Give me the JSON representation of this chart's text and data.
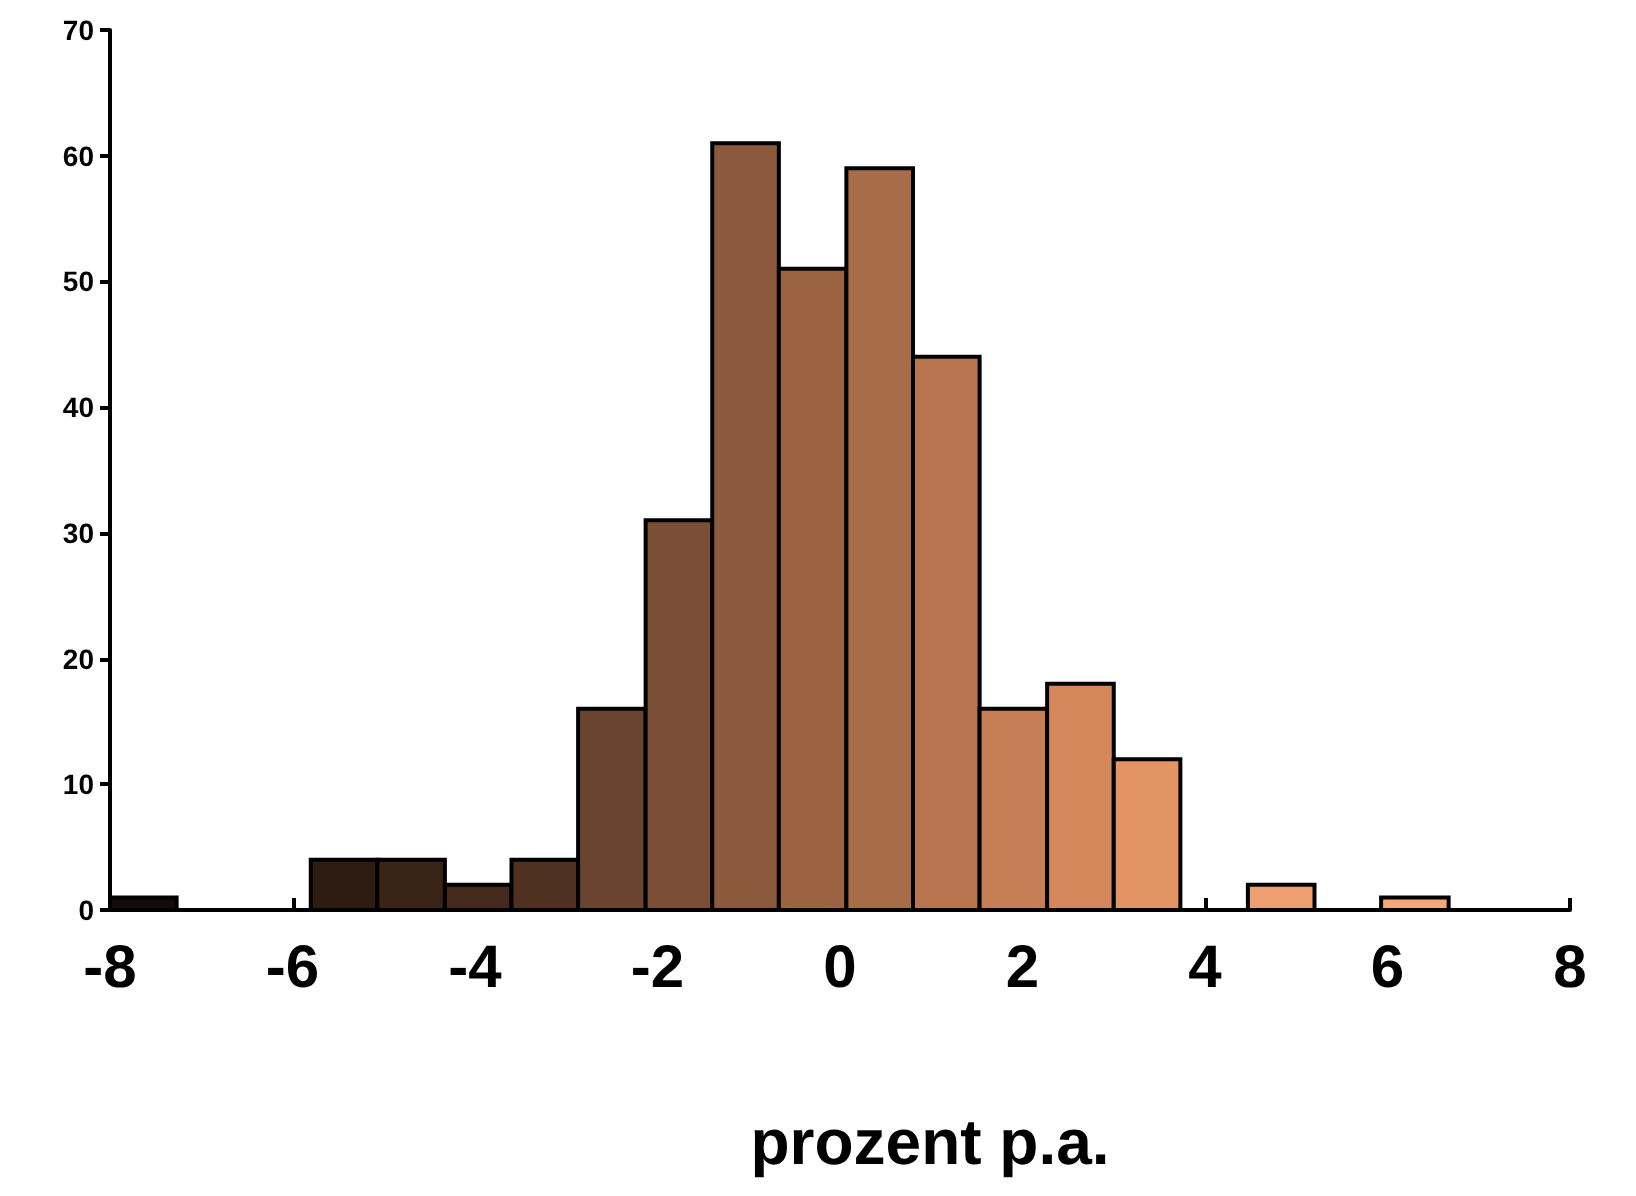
{
  "chart_data": {
    "type": "histogram",
    "xlabel": "prozent p.a.",
    "bins": [
      -8,
      -7.27,
      -5.8,
      -5.07,
      -4.33,
      -3.6,
      -2.87,
      -2.13,
      -1.4,
      -0.67,
      0.07,
      0.8,
      1.53,
      2.27,
      3,
      3.73,
      4.47,
      5.2,
      5.93,
      6.67
    ],
    "values": [
      1,
      0,
      4,
      4,
      2,
      4,
      16,
      31,
      61,
      51,
      59,
      44,
      16,
      18,
      12,
      0,
      2,
      0,
      1
    ],
    "colors": [
      "#140c08",
      null,
      "#2e1c13",
      "#3a2418",
      "#45291c",
      "#4f3021",
      "#6b4430",
      "#7a4f35",
      "#8b5a3c",
      "#9b6342",
      "#a86c48",
      "#b8744e",
      "#c67e55",
      "#d4875b",
      "#e39463",
      null,
      "#f0a070",
      null,
      "#f4a878"
    ],
    "xlim": [
      -8,
      8
    ],
    "xticks": [
      -8,
      -6,
      -4,
      -2,
      0,
      2,
      4,
      6,
      8
    ],
    "ylim": [
      0,
      70
    ],
    "yticks": [
      0,
      10,
      20,
      30,
      40,
      50,
      60,
      70
    ],
    "grid": false
  }
}
